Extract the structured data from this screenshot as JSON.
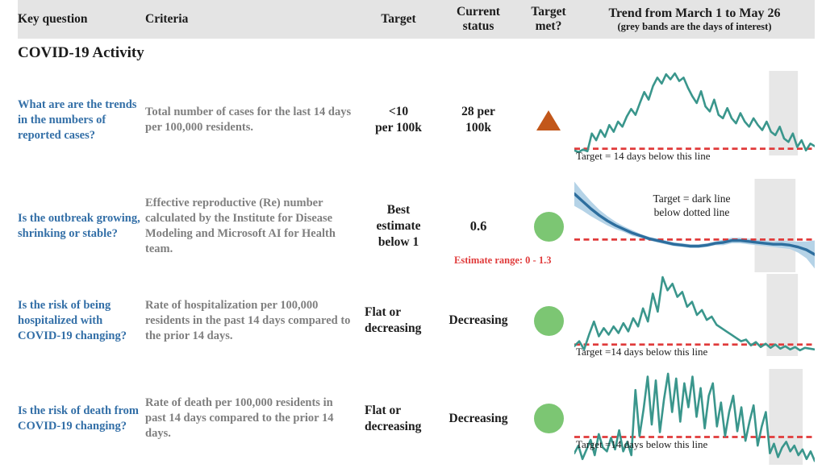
{
  "header": {
    "key_question": "Key question",
    "criteria": "Criteria",
    "target": "Target",
    "current_status": "Current\nstatus",
    "target_met": "Target\nmet?",
    "trend_title": "Trend from March 1 to May 26",
    "trend_subtitle": "(grey bands are the days of interest)"
  },
  "section_title": "COVID-19 Activity",
  "colors": {
    "header_bg": "#e4e4e4",
    "question_text": "#336fa7",
    "criteria_text": "#7f7f7f",
    "body_text": "#1b1b1b",
    "target_not_met_triangle": "#c2571a",
    "target_met_circle": "#7cc673",
    "trend_teal": "#3a968c",
    "re_line_blue": "#2d6e9e",
    "re_confidence_band": "#b5d3e7",
    "target_dashed_red": "#e03b3b",
    "day_band_grey": "#e7e7e7",
    "estimate_note_red": "#e03b3b"
  },
  "rows": [
    {
      "question": "What are are the trends in the numbers of reported cases?",
      "criteria": "Total number of cases for the last 14 days per 100,000 residents.",
      "target": "<10\nper 100k",
      "current_status": "28 per\n100k",
      "target_met": "no",
      "target_met_icon": "triangle-up-icon"
    },
    {
      "question": "Is the outbreak growing, shrinking or stable?",
      "criteria": "Effective reproductive (Re) number calculated by the Institute for Disease Modeling and Microsoft AI for Health team.",
      "target": "Best\nestimate\nbelow 1",
      "current_status": "0.6",
      "status_note": "Estimate range: 0 - 1.3",
      "target_met": "yes",
      "target_met_icon": "circle-icon"
    },
    {
      "question": "Is the risk of being hospitalized with COVID-19 changing?",
      "criteria": "Rate of hospitalization per 100,000 residents in the past 14 days compared to the prior 14 days.",
      "target": "Flat or\ndecreasing",
      "current_status": "Decreasing",
      "target_met": "yes",
      "target_met_icon": "circle-icon"
    },
    {
      "question": "Is the risk of death from COVID-19 changing?",
      "criteria": "Rate of death per 100,000 residents in past 14 days compared to the prior 14 days.",
      "target": "Flat or\ndecreasing",
      "current_status": "Decreasing",
      "target_met": "yes",
      "target_met_icon": "circle-icon"
    }
  ],
  "chart_data": [
    {
      "id": "reported-cases-trend",
      "type": "line",
      "x_range": [
        "March 1",
        "May 26"
      ],
      "caption": "Target = 14 days below this line",
      "color": "trend_teal",
      "stroke": 2.6,
      "target_line_pct": 8,
      "day_band_x_pct": [
        81,
        93
      ],
      "values": [
        6,
        4,
        7,
        5,
        26,
        18,
        30,
        22,
        36,
        28,
        40,
        34,
        46,
        55,
        48,
        62,
        75,
        66,
        82,
        92,
        85,
        96,
        90,
        97,
        88,
        92,
        80,
        70,
        62,
        76,
        58,
        52,
        66,
        48,
        44,
        56,
        44,
        38,
        50,
        40,
        34,
        44,
        36,
        30,
        40,
        28,
        24,
        34,
        20,
        16,
        26,
        10,
        18,
        6,
        14,
        11
      ]
    },
    {
      "id": "effective-reproductive-number-trend",
      "type": "line",
      "x_range": [
        "March 1",
        "May 26"
      ],
      "annotation": "Target = dark line\nbelow dotted line",
      "color": "re_line_blue",
      "band_color": "re_confidence_band",
      "stroke": 3.4,
      "target_line_pct": 35,
      "day_band_x_pct": [
        75,
        92
      ],
      "values": [
        84,
        76,
        68,
        61,
        55,
        50,
        46,
        42,
        39,
        36,
        34,
        32,
        30,
        29,
        28,
        28,
        29,
        31,
        32,
        34,
        34,
        33,
        32,
        31,
        30,
        30,
        29,
        27,
        24,
        19
      ],
      "band_width": [
        13,
        10,
        8,
        6,
        5,
        4,
        3,
        3,
        2,
        2,
        2,
        2,
        2,
        2,
        2,
        2,
        2,
        2,
        3,
        3,
        3,
        3,
        3,
        3,
        3,
        4,
        4,
        6,
        9,
        15
      ]
    },
    {
      "id": "hospitalization-rate-trend",
      "type": "line",
      "x_range": [
        "March 1",
        "May 26"
      ],
      "caption": "Target =14 days below this line",
      "color": "trend_teal",
      "stroke": 2.6,
      "target_line_pct": 14,
      "day_band_x_pct": [
        80,
        93
      ],
      "values": [
        12,
        18,
        8,
        26,
        42,
        24,
        34,
        26,
        36,
        28,
        40,
        30,
        46,
        36,
        58,
        42,
        76,
        54,
        96,
        80,
        88,
        72,
        78,
        60,
        66,
        50,
        56,
        44,
        48,
        38,
        34,
        30,
        26,
        22,
        18,
        20,
        13,
        17,
        11,
        15,
        10,
        14,
        9,
        12,
        8,
        11,
        7,
        10,
        9,
        8
      ]
    },
    {
      "id": "death-rate-trend",
      "type": "line",
      "x_range": [
        "March 1",
        "May 26"
      ],
      "caption": "Target =14 days below this line",
      "color": "trend_teal",
      "stroke": 2.6,
      "target_line_pct": 29,
      "day_band_x_pct": [
        81,
        95
      ],
      "values": [
        12,
        20,
        6,
        16,
        26,
        10,
        32,
        18,
        14,
        28,
        16,
        36,
        14,
        24,
        10,
        78,
        30,
        58,
        92,
        42,
        88,
        34,
        68,
        95,
        55,
        90,
        45,
        85,
        60,
        92,
        50,
        80,
        38,
        72,
        85,
        40,
        65,
        30,
        55,
        72,
        35,
        60,
        25,
        45,
        62,
        20,
        40,
        55,
        12,
        22,
        8,
        18,
        24,
        14,
        20,
        10,
        16,
        6,
        14,
        4
      ]
    }
  ]
}
